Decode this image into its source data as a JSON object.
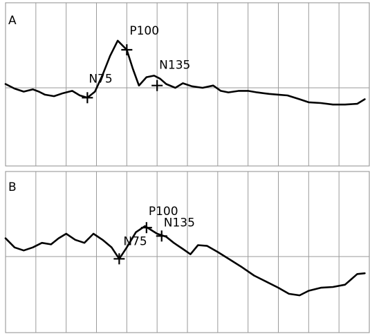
{
  "chart_data": [
    {
      "type": "line",
      "panel_label": "A",
      "title": "",
      "xlabel": "",
      "ylabel": "",
      "grid": true,
      "x_divisions": 12,
      "ylim": [
        -1.0,
        1.0
      ],
      "xlim": [
        0,
        12
      ],
      "series": [
        {
          "x": [
            0,
            0.3,
            0.6,
            0.9,
            1.1,
            1.3,
            1.6,
            1.9,
            2.2,
            2.45,
            2.7,
            2.95,
            3.2,
            3.45,
            3.7,
            4.0,
            4.2,
            4.4,
            4.65,
            4.9,
            5.1,
            5.3,
            5.6,
            5.85,
            6.15,
            6.5,
            6.85,
            7.1,
            7.35,
            7.7,
            8.0,
            8.3,
            8.7,
            9.0,
            9.3,
            9.7,
            10.0,
            10.4,
            10.8,
            11.2,
            11.6,
            11.85
          ],
          "y": [
            0.05,
            -0.01,
            -0.05,
            -0.02,
            -0.05,
            -0.09,
            -0.11,
            -0.07,
            -0.04,
            -0.1,
            -0.13,
            -0.05,
            0.17,
            0.42,
            0.62,
            0.5,
            0.25,
            0.03,
            0.14,
            0.16,
            0.12,
            0.05,
            0.0,
            0.06,
            0.02,
            0.0,
            0.03,
            -0.04,
            -0.06,
            -0.04,
            -0.04,
            -0.06,
            -0.08,
            -0.09,
            -0.1,
            -0.15,
            -0.19,
            -0.2,
            -0.22,
            -0.22,
            -0.21,
            -0.15
          ]
        }
      ],
      "peaks": [
        {
          "label": "N75",
          "x": 2.7,
          "y": -0.13
        },
        {
          "label": "P100",
          "x": 4.0,
          "y": 0.5
        },
        {
          "label": "N135",
          "x": 5.0,
          "y": 0.03
        }
      ]
    },
    {
      "type": "line",
      "panel_label": "B",
      "title": "",
      "xlabel": "",
      "ylabel": "",
      "grid": true,
      "x_divisions": 12,
      "ylim": [
        -1.0,
        1.0
      ],
      "xlim": [
        0,
        12
      ],
      "series": [
        {
          "x": [
            0,
            0.3,
            0.6,
            0.9,
            1.2,
            1.5,
            1.75,
            2.0,
            2.3,
            2.6,
            2.9,
            3.2,
            3.5,
            3.75,
            4.0,
            4.3,
            4.6,
            5.0,
            5.3,
            5.55,
            5.85,
            6.1,
            6.35,
            6.65,
            7.0,
            7.4,
            7.8,
            8.2,
            8.6,
            9.0,
            9.35,
            9.7,
            10.0,
            10.4,
            10.8,
            11.2,
            11.6,
            11.85
          ],
          "y": [
            0.24,
            0.12,
            0.08,
            0.12,
            0.18,
            0.16,
            0.24,
            0.3,
            0.22,
            0.18,
            0.3,
            0.22,
            0.12,
            -0.03,
            0.12,
            0.32,
            0.4,
            0.3,
            0.26,
            0.18,
            0.1,
            0.03,
            0.15,
            0.14,
            0.06,
            -0.04,
            -0.14,
            -0.25,
            -0.33,
            -0.41,
            -0.49,
            -0.51,
            -0.45,
            -0.41,
            -0.4,
            -0.37,
            -0.23,
            -0.22
          ]
        }
      ],
      "peaks": [
        {
          "label": "N75",
          "x": 3.75,
          "y": -0.03
        },
        {
          "label": "P100",
          "x": 4.65,
          "y": 0.38
        },
        {
          "label": "N135",
          "x": 5.15,
          "y": 0.27
        }
      ]
    }
  ]
}
